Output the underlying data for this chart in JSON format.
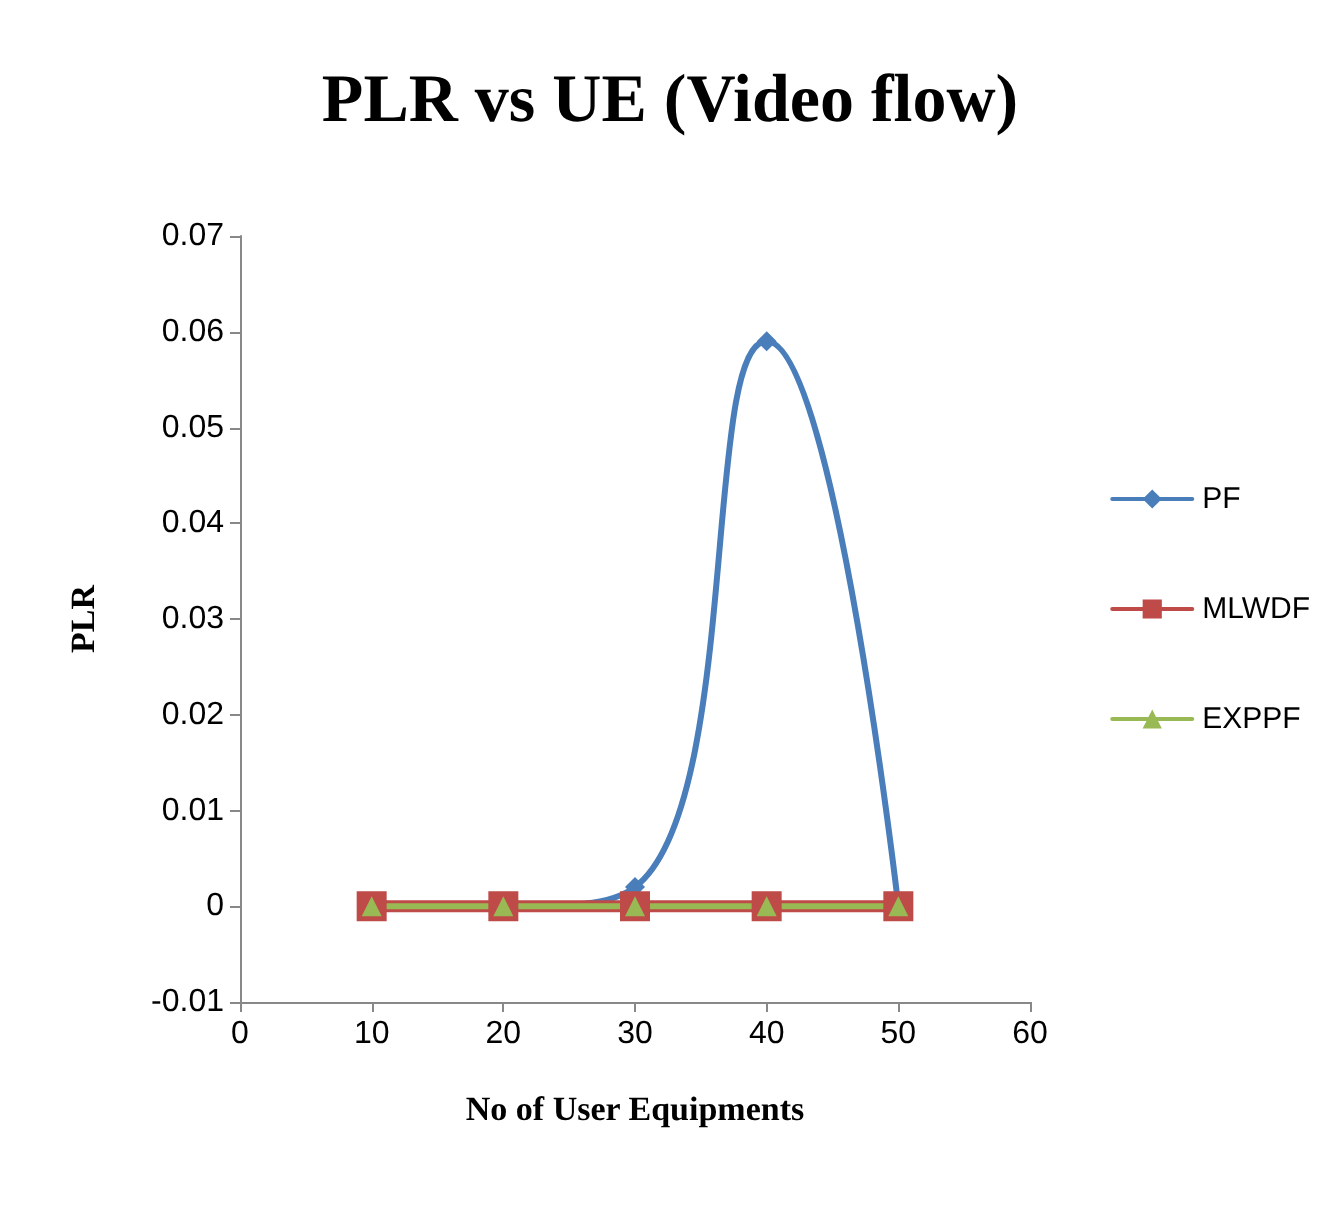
{
  "chart_data": {
    "type": "line",
    "title": "PLR vs UE (Video flow)",
    "xlabel": "No of User Equipments",
    "ylabel": "PLR",
    "x": [
      10,
      20,
      30,
      40,
      50
    ],
    "series": [
      {
        "name": "PF",
        "color": "#4a7ebb",
        "marker": "diamond",
        "values": [
          0,
          0,
          0.002,
          0.059,
          0
        ]
      },
      {
        "name": "MLWDF",
        "color": "#be4b48",
        "marker": "square",
        "values": [
          0,
          0,
          0,
          0,
          0
        ]
      },
      {
        "name": "EXPPF",
        "color": "#98b954",
        "marker": "triangle",
        "values": [
          0,
          0,
          0,
          0,
          0
        ]
      }
    ],
    "xlim": [
      0,
      60
    ],
    "xticks": [
      0,
      10,
      20,
      30,
      40,
      50,
      60
    ],
    "ylim": [
      -0.01,
      0.07
    ],
    "yticks": [
      -0.01,
      0,
      0.01,
      0.02,
      0.03,
      0.04,
      0.05,
      0.06,
      0.07
    ],
    "grid": false,
    "legend": "right",
    "line_style": "solid"
  }
}
